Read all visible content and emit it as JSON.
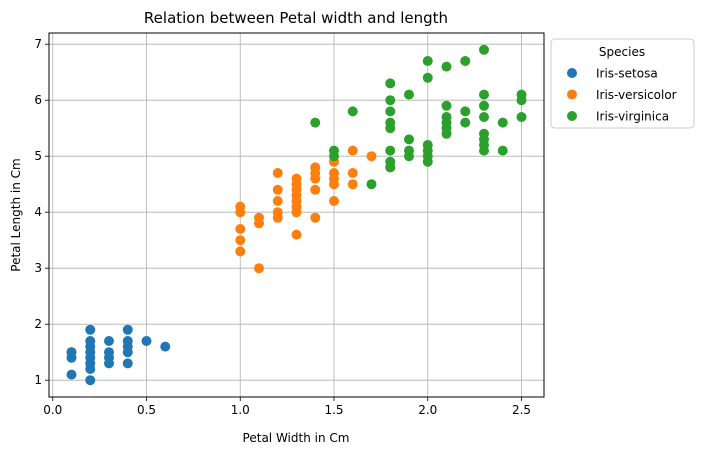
{
  "chart_data": {
    "type": "scatter",
    "title": "Relation between Petal width and length",
    "xlabel": "Petal Width in Cm",
    "ylabel": "Petal Length in Cm",
    "xlim": [
      -0.02,
      2.62
    ],
    "ylim": [
      0.7,
      7.2
    ],
    "xticks": [
      0.0,
      0.5,
      1.0,
      1.5,
      2.0,
      2.5
    ],
    "xtick_labels": [
      "0.0",
      "0.5",
      "1.0",
      "1.5",
      "2.0",
      "2.5"
    ],
    "yticks": [
      1,
      2,
      3,
      4,
      5,
      6,
      7
    ],
    "ytick_labels": [
      "1",
      "2",
      "3",
      "4",
      "5",
      "6",
      "7"
    ],
    "grid": true,
    "legend": {
      "title": "Species",
      "placement": "outside-right-top"
    },
    "series": [
      {
        "name": "Iris-setosa",
        "color": "#1f77b4",
        "points": [
          [
            0.1,
            1.1
          ],
          [
            0.1,
            1.4
          ],
          [
            0.1,
            1.5
          ],
          [
            0.1,
            1.5
          ],
          [
            0.2,
            1.0
          ],
          [
            0.2,
            1.2
          ],
          [
            0.2,
            1.3
          ],
          [
            0.2,
            1.4
          ],
          [
            0.2,
            1.5
          ],
          [
            0.2,
            1.6
          ],
          [
            0.2,
            1.7
          ],
          [
            0.2,
            1.9
          ],
          [
            0.3,
            1.3
          ],
          [
            0.3,
            1.4
          ],
          [
            0.3,
            1.5
          ],
          [
            0.3,
            1.7
          ],
          [
            0.4,
            1.3
          ],
          [
            0.4,
            1.5
          ],
          [
            0.4,
            1.6
          ],
          [
            0.4,
            1.7
          ],
          [
            0.4,
            1.9
          ],
          [
            0.5,
            1.7
          ],
          [
            0.6,
            1.6
          ]
        ]
      },
      {
        "name": "Iris-versicolor",
        "color": "#ff7f0e",
        "points": [
          [
            1.0,
            3.3
          ],
          [
            1.0,
            3.5
          ],
          [
            1.0,
            3.7
          ],
          [
            1.0,
            4.0
          ],
          [
            1.0,
            4.1
          ],
          [
            1.1,
            3.0
          ],
          [
            1.1,
            3.8
          ],
          [
            1.1,
            3.9
          ],
          [
            1.2,
            3.9
          ],
          [
            1.2,
            4.0
          ],
          [
            1.2,
            4.2
          ],
          [
            1.2,
            4.4
          ],
          [
            1.2,
            4.7
          ],
          [
            1.3,
            3.6
          ],
          [
            1.3,
            4.0
          ],
          [
            1.3,
            4.1
          ],
          [
            1.3,
            4.2
          ],
          [
            1.3,
            4.3
          ],
          [
            1.3,
            4.4
          ],
          [
            1.3,
            4.5
          ],
          [
            1.3,
            4.6
          ],
          [
            1.4,
            3.9
          ],
          [
            1.4,
            4.4
          ],
          [
            1.4,
            4.6
          ],
          [
            1.4,
            4.7
          ],
          [
            1.4,
            4.8
          ],
          [
            1.5,
            4.2
          ],
          [
            1.5,
            4.5
          ],
          [
            1.5,
            4.6
          ],
          [
            1.5,
            4.7
          ],
          [
            1.5,
            4.9
          ],
          [
            1.6,
            4.5
          ],
          [
            1.6,
            4.7
          ],
          [
            1.6,
            5.1
          ],
          [
            1.7,
            5.0
          ],
          [
            1.8,
            4.8
          ]
        ]
      },
      {
        "name": "Iris-virginica",
        "color": "#2ca02c",
        "points": [
          [
            1.4,
            5.6
          ],
          [
            1.5,
            5.0
          ],
          [
            1.5,
            5.1
          ],
          [
            1.6,
            5.8
          ],
          [
            1.7,
            4.5
          ],
          [
            1.8,
            4.8
          ],
          [
            1.8,
            4.9
          ],
          [
            1.8,
            5.1
          ],
          [
            1.8,
            5.5
          ],
          [
            1.8,
            5.6
          ],
          [
            1.8,
            5.8
          ],
          [
            1.8,
            6.0
          ],
          [
            1.8,
            6.3
          ],
          [
            1.9,
            5.0
          ],
          [
            1.9,
            5.1
          ],
          [
            1.9,
            5.3
          ],
          [
            1.9,
            6.1
          ],
          [
            2.0,
            4.9
          ],
          [
            2.0,
            5.0
          ],
          [
            2.0,
            5.1
          ],
          [
            2.0,
            5.2
          ],
          [
            2.0,
            6.4
          ],
          [
            2.0,
            6.7
          ],
          [
            2.1,
            5.4
          ],
          [
            2.1,
            5.5
          ],
          [
            2.1,
            5.6
          ],
          [
            2.1,
            5.7
          ],
          [
            2.1,
            5.9
          ],
          [
            2.1,
            6.6
          ],
          [
            2.2,
            5.6
          ],
          [
            2.2,
            5.8
          ],
          [
            2.2,
            6.7
          ],
          [
            2.3,
            5.1
          ],
          [
            2.3,
            5.2
          ],
          [
            2.3,
            5.3
          ],
          [
            2.3,
            5.4
          ],
          [
            2.3,
            5.7
          ],
          [
            2.3,
            5.9
          ],
          [
            2.3,
            6.1
          ],
          [
            2.3,
            6.9
          ],
          [
            2.4,
            5.1
          ],
          [
            2.4,
            5.6
          ],
          [
            2.5,
            5.7
          ],
          [
            2.5,
            6.0
          ],
          [
            2.5,
            6.1
          ]
        ]
      }
    ]
  }
}
